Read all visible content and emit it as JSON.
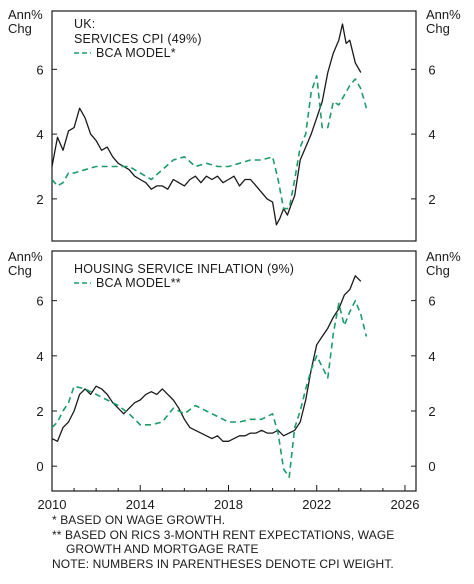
{
  "colors": {
    "actual": "#1a1a1a",
    "model": "#1e9c6a",
    "frame": "#1a1a1a"
  },
  "axis_unit_line1": "Ann%",
  "axis_unit_line2": "Chg",
  "x_ticks": [
    "2010",
    "2014",
    "2018",
    "2022",
    "2026"
  ],
  "notes": [
    "* BASED ON WAGE GROWTH.",
    "** BASED ON RICS 3-MONTH RENT EXPECTATIONS, WAGE",
    "GROWTH AND MORTGAGE RATE",
    "NOTE: NUMBERS IN PARENTHESES DENOTE CPI WEIGHT."
  ],
  "chart_data": [
    {
      "type": "line",
      "region_label": "UK:",
      "y_ticks": [
        "2",
        "4",
        "6"
      ],
      "ylim": [
        0.7,
        7.8
      ],
      "xlim": [
        2010.0,
        2026.5
      ],
      "legend": [
        {
          "label": "SERVICES CPI (49%)",
          "style": "solid"
        },
        {
          "label": "BCA MODEL*",
          "style": "dashed"
        }
      ],
      "series": [
        {
          "name": "SERVICES CPI (49%)",
          "style": "solid",
          "x": [
            2010.0,
            2010.25,
            2010.5,
            2010.75,
            2011.0,
            2011.25,
            2011.5,
            2011.75,
            2012.0,
            2012.25,
            2012.5,
            2012.75,
            2013.0,
            2013.25,
            2013.5,
            2013.75,
            2014.0,
            2014.25,
            2014.5,
            2014.75,
            2015.0,
            2015.25,
            2015.5,
            2015.75,
            2016.0,
            2016.25,
            2016.5,
            2016.75,
            2017.0,
            2017.25,
            2017.5,
            2017.75,
            2018.0,
            2018.25,
            2018.5,
            2018.75,
            2019.0,
            2019.25,
            2019.5,
            2019.75,
            2020.0,
            2020.17,
            2020.33,
            2020.5,
            2020.67,
            2020.83,
            2021.0,
            2021.25,
            2021.5,
            2021.75,
            2022.0,
            2022.25,
            2022.5,
            2022.75,
            2023.0,
            2023.17,
            2023.33,
            2023.5,
            2023.75,
            2024.0
          ],
          "values": [
            3.0,
            3.9,
            3.5,
            4.1,
            4.2,
            4.8,
            4.5,
            4.0,
            3.8,
            3.5,
            3.6,
            3.3,
            3.1,
            3.0,
            2.9,
            2.7,
            2.6,
            2.5,
            2.3,
            2.4,
            2.4,
            2.3,
            2.6,
            2.5,
            2.4,
            2.6,
            2.7,
            2.5,
            2.7,
            2.6,
            2.7,
            2.5,
            2.6,
            2.7,
            2.4,
            2.6,
            2.6,
            2.4,
            2.2,
            2.0,
            1.9,
            1.2,
            1.4,
            1.7,
            1.5,
            1.8,
            2.1,
            3.2,
            3.6,
            4.0,
            4.5,
            5.0,
            5.9,
            6.5,
            6.9,
            7.4,
            6.8,
            6.9,
            6.2,
            5.9
          ]
        },
        {
          "name": "BCA MODEL*",
          "style": "dashed",
          "x": [
            2010.0,
            2010.25,
            2010.5,
            2010.75,
            2011.0,
            2011.5,
            2012.0,
            2012.5,
            2013.0,
            2013.5,
            2014.0,
            2014.5,
            2015.0,
            2015.5,
            2016.0,
            2016.5,
            2017.0,
            2017.5,
            2018.0,
            2018.5,
            2019.0,
            2019.5,
            2020.0,
            2020.25,
            2020.5,
            2020.75,
            2021.0,
            2021.25,
            2021.5,
            2021.75,
            2022.0,
            2022.25,
            2022.5,
            2022.75,
            2023.0,
            2023.25,
            2023.5,
            2023.75,
            2024.0,
            2024.25
          ],
          "values": [
            2.6,
            2.4,
            2.5,
            2.8,
            2.8,
            2.9,
            3.0,
            3.0,
            3.0,
            3.0,
            2.8,
            2.6,
            2.9,
            3.2,
            3.3,
            3.0,
            3.1,
            3.0,
            3.0,
            3.1,
            3.2,
            3.2,
            3.3,
            2.6,
            1.7,
            1.7,
            2.6,
            3.6,
            4.0,
            5.3,
            5.8,
            4.2,
            4.2,
            5.0,
            4.9,
            5.2,
            5.5,
            5.7,
            5.4,
            4.8
          ]
        }
      ]
    },
    {
      "type": "line",
      "region_label": "",
      "y_ticks": [
        "0",
        "2",
        "4",
        "6"
      ],
      "ylim": [
        -0.9,
        7.8
      ],
      "xlim": [
        2010.0,
        2026.5
      ],
      "legend": [
        {
          "label": "HOUSING SERVICE INFLATION (9%)",
          "style": "solid"
        },
        {
          "label": "BCA MODEL**",
          "style": "dashed"
        }
      ],
      "series": [
        {
          "name": "HOUSING SERVICE INFLATION (9%)",
          "style": "solid",
          "x": [
            2010.0,
            2010.25,
            2010.5,
            2010.75,
            2011.0,
            2011.25,
            2011.5,
            2011.75,
            2012.0,
            2012.25,
            2012.5,
            2012.75,
            2013.0,
            2013.25,
            2013.5,
            2013.75,
            2014.0,
            2014.25,
            2014.5,
            2014.75,
            2015.0,
            2015.25,
            2015.5,
            2015.75,
            2016.0,
            2016.25,
            2016.5,
            2016.75,
            2017.0,
            2017.25,
            2017.5,
            2017.75,
            2018.0,
            2018.25,
            2018.5,
            2018.75,
            2019.0,
            2019.25,
            2019.5,
            2019.75,
            2020.0,
            2020.25,
            2020.5,
            2020.75,
            2021.0,
            2021.25,
            2021.5,
            2021.75,
            2022.0,
            2022.25,
            2022.5,
            2022.75,
            2023.0,
            2023.25,
            2023.5,
            2023.75,
            2024.0
          ],
          "values": [
            1.0,
            0.9,
            1.4,
            1.6,
            2.0,
            2.6,
            2.8,
            2.6,
            2.9,
            2.8,
            2.6,
            2.3,
            2.1,
            1.9,
            2.1,
            2.3,
            2.4,
            2.6,
            2.7,
            2.6,
            2.8,
            2.6,
            2.4,
            2.1,
            1.7,
            1.4,
            1.3,
            1.2,
            1.1,
            1.0,
            1.1,
            0.9,
            0.9,
            1.0,
            1.1,
            1.1,
            1.2,
            1.2,
            1.3,
            1.2,
            1.2,
            1.3,
            1.1,
            1.2,
            1.3,
            1.6,
            2.4,
            3.5,
            4.4,
            4.7,
            5.0,
            5.4,
            5.7,
            6.2,
            6.4,
            6.9,
            6.7
          ]
        },
        {
          "name": "BCA MODEL**",
          "style": "dashed",
          "x": [
            2010.0,
            2010.25,
            2010.5,
            2010.75,
            2011.0,
            2011.5,
            2012.0,
            2012.5,
            2013.0,
            2013.5,
            2014.0,
            2014.5,
            2015.0,
            2015.5,
            2016.0,
            2016.5,
            2017.0,
            2017.5,
            2018.0,
            2018.5,
            2019.0,
            2019.5,
            2019.75,
            2020.0,
            2020.25,
            2020.5,
            2020.75,
            2021.0,
            2021.25,
            2021.5,
            2021.75,
            2022.0,
            2022.25,
            2022.5,
            2022.75,
            2023.0,
            2023.25,
            2023.5,
            2023.75,
            2024.0,
            2024.25
          ],
          "values": [
            1.4,
            1.6,
            2.0,
            2.3,
            2.9,
            2.8,
            2.6,
            2.4,
            2.2,
            1.9,
            1.5,
            1.5,
            1.6,
            2.1,
            1.9,
            2.2,
            2.0,
            1.8,
            1.6,
            1.6,
            1.7,
            1.7,
            1.8,
            1.9,
            1.2,
            -0.1,
            -0.4,
            1.4,
            2.0,
            2.8,
            3.5,
            4.0,
            3.6,
            3.2,
            4.8,
            5.9,
            5.1,
            5.6,
            6.0,
            5.5,
            4.7
          ]
        }
      ]
    }
  ]
}
